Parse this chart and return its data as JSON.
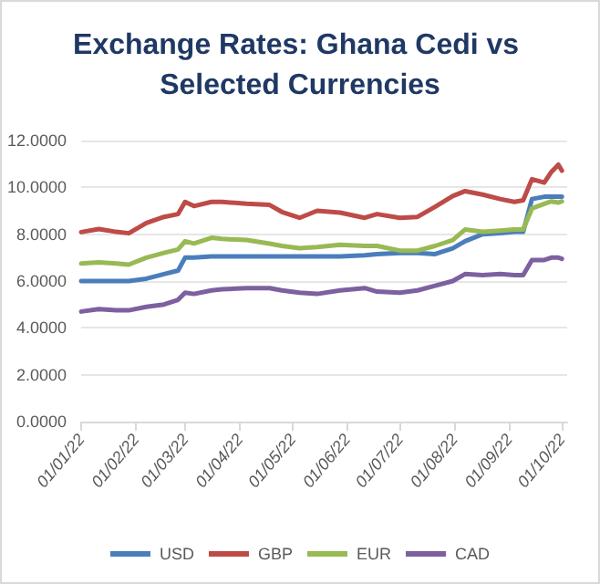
{
  "chart_data": {
    "type": "line",
    "title": "Exchange Rates: Ghana Cedi vs Selected Currencies",
    "x": [
      "2022-01-01",
      "2022-01-11",
      "2022-01-21",
      "2022-01-28",
      "2022-02-07",
      "2022-02-17",
      "2022-02-25",
      "2022-03-01",
      "2022-03-06",
      "2022-03-16",
      "2022-03-22",
      "2022-04-05",
      "2022-04-18",
      "2022-04-25",
      "2022-05-05",
      "2022-05-15",
      "2022-05-28",
      "2022-06-11",
      "2022-06-18",
      "2022-07-01",
      "2022-07-11",
      "2022-07-21",
      "2022-07-31",
      "2022-08-07",
      "2022-08-17",
      "2022-08-27",
      "2022-09-04",
      "2022-09-09",
      "2022-09-14",
      "2022-09-21",
      "2022-09-25",
      "2022-09-29",
      "2022-10-01"
    ],
    "series": [
      {
        "name": "USD",
        "color": "#4a7ebb",
        "values": [
          6.0,
          6.0,
          6.0,
          6.0,
          6.1,
          6.3,
          6.45,
          7.0,
          7.0,
          7.05,
          7.05,
          7.05,
          7.05,
          7.05,
          7.05,
          7.05,
          7.05,
          7.1,
          7.15,
          7.2,
          7.2,
          7.15,
          7.4,
          7.7,
          8.0,
          8.05,
          8.1,
          8.1,
          9.5,
          9.6,
          9.6,
          9.6,
          9.6
        ]
      },
      {
        "name": "GBP",
        "color": "#be4b48",
        "values": [
          8.09,
          8.22,
          8.1,
          8.04,
          8.48,
          8.74,
          8.86,
          9.38,
          9.2,
          9.38,
          9.38,
          9.3,
          9.25,
          8.95,
          8.7,
          9.0,
          8.92,
          8.7,
          8.86,
          8.7,
          8.74,
          9.17,
          9.63,
          9.84,
          9.69,
          9.5,
          9.38,
          9.45,
          10.35,
          10.2,
          10.66,
          10.97,
          10.71
        ]
      },
      {
        "name": "EUR",
        "color": "#98b954",
        "values": [
          6.75,
          6.8,
          6.75,
          6.7,
          7.0,
          7.2,
          7.35,
          7.7,
          7.6,
          7.85,
          7.8,
          7.75,
          7.6,
          7.5,
          7.4,
          7.45,
          7.55,
          7.5,
          7.5,
          7.3,
          7.3,
          7.5,
          7.75,
          8.2,
          8.1,
          8.15,
          8.2,
          8.2,
          9.1,
          9.3,
          9.4,
          9.35,
          9.4
        ]
      },
      {
        "name": "CAD",
        "color": "#7d60a0",
        "values": [
          4.7,
          4.8,
          4.75,
          4.75,
          4.9,
          5.0,
          5.2,
          5.5,
          5.45,
          5.6,
          5.65,
          5.7,
          5.7,
          5.6,
          5.5,
          5.45,
          5.6,
          5.7,
          5.55,
          5.5,
          5.6,
          5.8,
          6.0,
          6.3,
          6.25,
          6.3,
          6.25,
          6.25,
          6.9,
          6.9,
          7.0,
          7.0,
          6.95
        ]
      }
    ],
    "xlim": [
      "2022-01-01",
      "2022-10-04"
    ],
    "xticks": [
      {
        "value": "2022-01-01",
        "label": "01/01/22"
      },
      {
        "value": "2022-02-01",
        "label": "01/02/22"
      },
      {
        "value": "2022-03-01",
        "label": "01/03/22"
      },
      {
        "value": "2022-04-01",
        "label": "01/04/22"
      },
      {
        "value": "2022-05-01",
        "label": "01/05/22"
      },
      {
        "value": "2022-06-01",
        "label": "01/06/22"
      },
      {
        "value": "2022-07-01",
        "label": "01/07/22"
      },
      {
        "value": "2022-08-01",
        "label": "01/08/22"
      },
      {
        "value": "2022-09-01",
        "label": "01/09/22"
      },
      {
        "value": "2022-10-01",
        "label": "01/10/22"
      }
    ],
    "ylim": [
      0,
      12
    ],
    "yticks": [
      {
        "value": 0,
        "label": "0.0000"
      },
      {
        "value": 2,
        "label": "2.0000"
      },
      {
        "value": 4,
        "label": "4.0000"
      },
      {
        "value": 6,
        "label": "6.0000"
      },
      {
        "value": 8,
        "label": "8.0000"
      },
      {
        "value": 10,
        "label": "10.0000"
      },
      {
        "value": 12,
        "label": "12.0000"
      }
    ],
    "grid": "y",
    "legend": "bottom"
  }
}
